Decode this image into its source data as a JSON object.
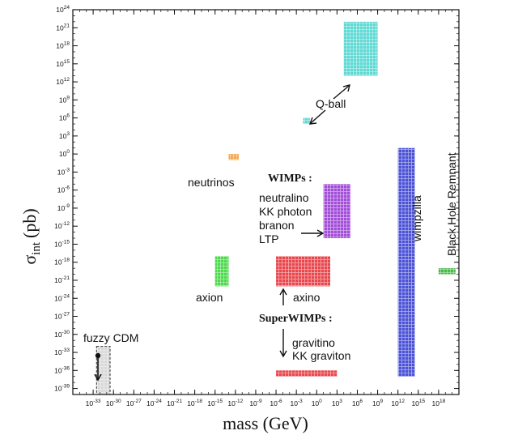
{
  "chart_data": {
    "type": "area",
    "title": "",
    "xlabel": "mass (GeV)",
    "ylabel": "σ",
    "ylabel_sub": "int",
    "ylabel_unit": "(pb)",
    "x_scale": "log",
    "y_scale": "log",
    "xlim_log10": [
      -36,
      21
    ],
    "ylim_log10": [
      -40,
      24
    ],
    "x_tick_exponents": [
      -33,
      -30,
      -27,
      -24,
      -21,
      -18,
      -15,
      -12,
      -9,
      -6,
      -3,
      0,
      3,
      6,
      9,
      12,
      15,
      18
    ],
    "y_tick_exponents": [
      -39,
      -36,
      -33,
      -30,
      -27,
      -24,
      -21,
      -18,
      -15,
      -12,
      -9,
      -6,
      -3,
      0,
      3,
      6,
      9,
      12,
      15,
      18,
      21,
      24
    ],
    "grid": false,
    "legend": "none",
    "regions": [
      {
        "name": "Q-ball (large)",
        "x_log10": [
          4,
          9
        ],
        "y_log10": [
          13,
          22
        ],
        "color": "#5ed9d4"
      },
      {
        "name": "Q-ball (small)",
        "x_log10": [
          -2,
          -1
        ],
        "y_log10": [
          5,
          6
        ],
        "color": "#5ed9d4"
      },
      {
        "name": "neutrinos",
        "x_log10": [
          -13,
          -11.5
        ],
        "y_log10": [
          -1,
          0
        ],
        "color": "#f2a54a"
      },
      {
        "name": "WIMPs",
        "x_log10": [
          1,
          5
        ],
        "y_log10": [
          -14,
          -5
        ],
        "color": "#a24cd9"
      },
      {
        "name": "axion",
        "x_log10": [
          -15,
          -13
        ],
        "y_log10": [
          -22,
          -17
        ],
        "color": "#4cd94c"
      },
      {
        "name": "axino",
        "x_log10": [
          -6,
          2
        ],
        "y_log10": [
          -22,
          -17
        ],
        "color": "#e8474d"
      },
      {
        "name": "gravitino / KK graviton",
        "x_log10": [
          -6,
          3
        ],
        "y_log10": [
          -37,
          -36
        ],
        "color": "#e8474d"
      },
      {
        "name": "wimpzilla",
        "x_log10": [
          12,
          14.5
        ],
        "y_log10": [
          -37,
          1
        ],
        "color": "#4b52d6"
      },
      {
        "name": "Black Hole Remnant",
        "x_log10": [
          18,
          20.5
        ],
        "y_log10": [
          -20,
          -19
        ],
        "color": "#4ab84a"
      },
      {
        "name": "fuzzy CDM",
        "x_log10": [
          -32.5,
          -30.5
        ],
        "y_log10": [
          -40,
          -32
        ],
        "color": "#d8d8d8"
      }
    ],
    "labels": {
      "qball": "Q-ball",
      "neutrinos": "neutrinos",
      "wimps_heading": "WIMPs :",
      "wimps_members": [
        "neutralino",
        "KK photon",
        "branon",
        "LTP"
      ],
      "axion": "axion",
      "axino": "axino",
      "superwimps_heading": "SuperWIMPs :",
      "superwimps_members": [
        "gravitino",
        "KK graviton"
      ],
      "wimpzilla": "wimpzilla",
      "black_hole": "Black Hole Remnant",
      "fuzzy": "fuzzy CDM"
    }
  }
}
